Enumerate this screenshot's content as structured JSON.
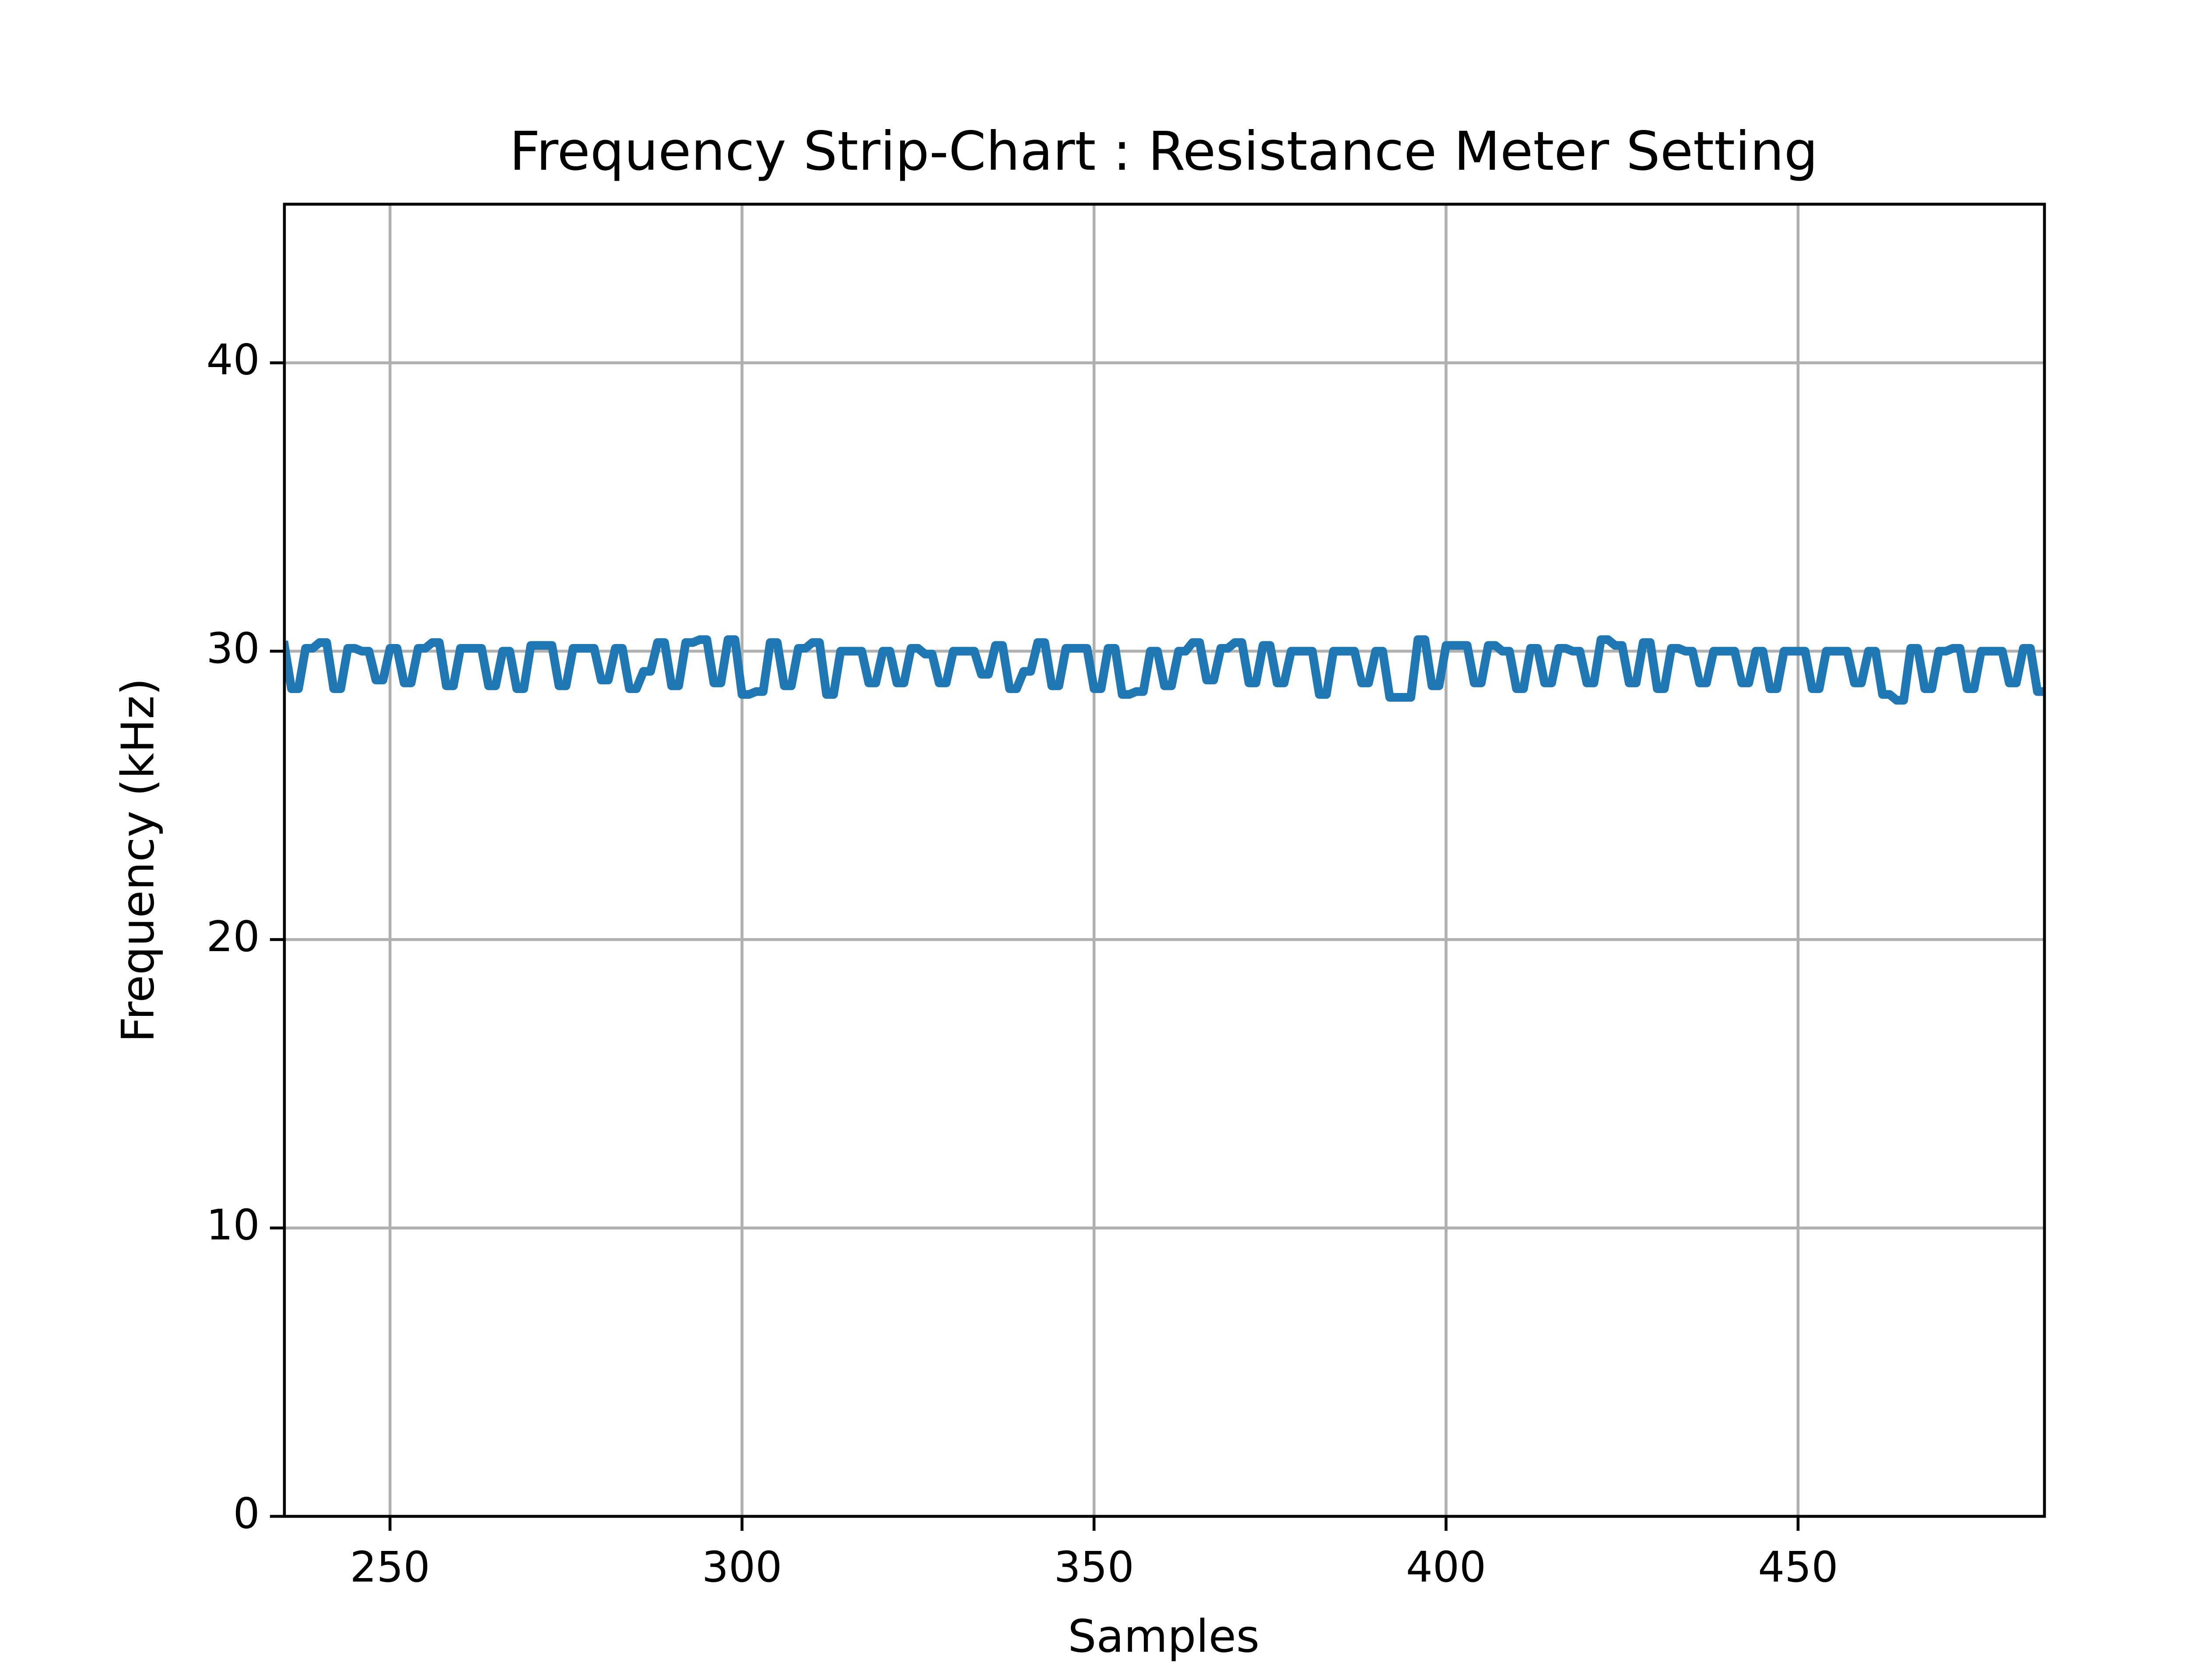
{
  "chart_data": {
    "type": "line",
    "title": "Frequency Strip-Chart : Resistance Meter Setting",
    "xlabel": "Samples",
    "ylabel": "Frequency (kHz)",
    "color": "#1f77b4",
    "grid": true,
    "xlim": [
      235,
      485
    ],
    "ylim": [
      0,
      45.5
    ],
    "xticks": [
      250,
      300,
      350,
      400,
      450
    ],
    "yticks": [
      0,
      10,
      20,
      30,
      40
    ],
    "x": [
      235,
      236,
      237,
      238,
      239,
      240,
      241,
      242,
      243,
      244,
      245,
      246,
      247,
      248,
      249,
      250,
      251,
      252,
      253,
      254,
      255,
      256,
      257,
      258,
      259,
      260,
      261,
      262,
      263,
      264,
      265,
      266,
      267,
      268,
      269,
      270,
      271,
      272,
      273,
      274,
      275,
      276,
      277,
      278,
      279,
      280,
      281,
      282,
      283,
      284,
      285,
      286,
      287,
      288,
      289,
      290,
      291,
      292,
      293,
      294,
      295,
      296,
      297,
      298,
      299,
      300,
      301,
      302,
      303,
      304,
      305,
      306,
      307,
      308,
      309,
      310,
      311,
      312,
      313,
      314,
      315,
      316,
      317,
      318,
      319,
      320,
      321,
      322,
      323,
      324,
      325,
      326,
      327,
      328,
      329,
      330,
      331,
      332,
      333,
      334,
      335,
      336,
      337,
      338,
      339,
      340,
      341,
      342,
      343,
      344,
      345,
      346,
      347,
      348,
      349,
      350,
      351,
      352,
      353,
      354,
      355,
      356,
      357,
      358,
      359,
      360,
      361,
      362,
      363,
      364,
      365,
      366,
      367,
      368,
      369,
      370,
      371,
      372,
      373,
      374,
      375,
      376,
      377,
      378,
      379,
      380,
      381,
      382,
      383,
      384,
      385,
      386,
      387,
      388,
      389,
      390,
      391,
      392,
      393,
      394,
      395,
      396,
      397,
      398,
      399,
      400,
      401,
      402,
      403,
      404,
      405,
      406,
      407,
      408,
      409,
      410,
      411,
      412,
      413,
      414,
      415,
      416,
      417,
      418,
      419,
      420,
      421,
      422,
      423,
      424,
      425,
      426,
      427,
      428,
      429,
      430,
      431,
      432,
      433,
      434,
      435,
      436,
      437,
      438,
      439,
      440,
      441,
      442,
      443,
      444,
      445,
      446,
      447,
      448,
      449,
      450,
      451,
      452,
      453,
      454,
      455,
      456,
      457,
      458,
      459,
      460,
      461,
      462,
      463,
      464,
      465,
      466,
      467,
      468,
      469,
      470,
      471,
      472,
      473,
      474,
      475,
      476,
      477,
      478,
      479,
      480,
      481,
      482,
      483,
      484,
      485
    ],
    "values": [
      30.2,
      28.7,
      28.7,
      30.1,
      30.1,
      30.3,
      30.3,
      28.7,
      28.7,
      30.1,
      30.1,
      30.0,
      30.0,
      29.0,
      29.0,
      30.1,
      30.1,
      28.9,
      28.9,
      30.1,
      30.1,
      30.3,
      30.3,
      28.8,
      28.8,
      30.1,
      30.1,
      30.1,
      30.1,
      28.8,
      28.8,
      30.0,
      30.0,
      28.7,
      28.7,
      30.2,
      30.2,
      30.2,
      30.2,
      28.8,
      28.8,
      30.1,
      30.1,
      30.1,
      30.1,
      29.0,
      29.0,
      30.1,
      30.1,
      28.7,
      28.7,
      29.3,
      29.3,
      30.3,
      30.3,
      28.8,
      28.8,
      30.3,
      30.3,
      30.4,
      30.4,
      28.9,
      28.9,
      30.4,
      30.4,
      28.5,
      28.5,
      28.6,
      28.6,
      30.3,
      30.3,
      28.8,
      28.8,
      30.1,
      30.1,
      30.3,
      30.3,
      28.5,
      28.5,
      30.0,
      30.0,
      30.0,
      30.0,
      28.9,
      28.9,
      30.0,
      30.0,
      28.9,
      28.9,
      30.1,
      30.1,
      29.9,
      29.9,
      28.9,
      28.9,
      30.0,
      30.0,
      30.0,
      30.0,
      29.2,
      29.2,
      30.2,
      30.2,
      28.7,
      28.7,
      29.3,
      29.3,
      30.3,
      30.3,
      28.8,
      28.8,
      30.1,
      30.1,
      30.1,
      30.1,
      28.7,
      28.7,
      30.1,
      30.1,
      28.5,
      28.5,
      28.6,
      28.6,
      30.0,
      30.0,
      28.8,
      28.8,
      30.0,
      30.0,
      30.3,
      30.3,
      29.0,
      29.0,
      30.1,
      30.1,
      30.3,
      30.3,
      28.9,
      28.9,
      30.2,
      30.2,
      28.9,
      28.9,
      30.0,
      30.0,
      30.0,
      30.0,
      28.5,
      28.5,
      30.0,
      30.0,
      30.0,
      30.0,
      28.9,
      28.9,
      30.0,
      30.0,
      28.4,
      28.4,
      28.4,
      28.4,
      30.4,
      30.4,
      28.8,
      28.8,
      30.2,
      30.2,
      30.2,
      30.2,
      28.9,
      28.9,
      30.2,
      30.2,
      30.0,
      30.0,
      28.7,
      28.7,
      30.1,
      30.1,
      28.9,
      28.9,
      30.1,
      30.1,
      30.0,
      30.0,
      28.9,
      28.9,
      30.4,
      30.4,
      30.2,
      30.2,
      28.9,
      28.9,
      30.3,
      30.3,
      28.7,
      28.7,
      30.1,
      30.1,
      30.0,
      30.0,
      28.9,
      28.9,
      30.0,
      30.0,
      30.0,
      30.0,
      28.9,
      28.9,
      30.0,
      30.0,
      28.7,
      28.7,
      30.0,
      30.0,
      30.0,
      30.0,
      28.7,
      28.7,
      30.0,
      30.0,
      30.0,
      30.0,
      28.9,
      28.9,
      30.0,
      30.0,
      28.5,
      28.5,
      28.3,
      28.3,
      30.1,
      30.1,
      28.7,
      28.7,
      30.0,
      30.0,
      30.1,
      30.1,
      28.7,
      28.7,
      30.0,
      30.0,
      30.0,
      30.0,
      28.9,
      28.9,
      30.1,
      30.1,
      28.6,
      28.6
    ]
  }
}
